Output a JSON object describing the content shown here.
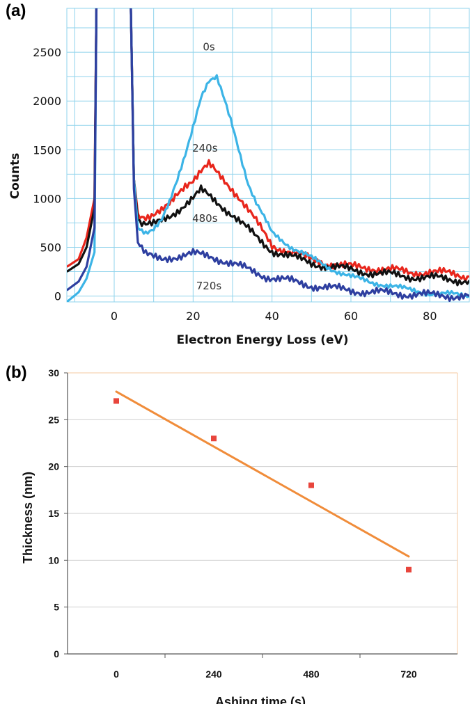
{
  "panels": {
    "a": "(a)",
    "b": "(b)"
  },
  "chart_data": [
    {
      "type": "line",
      "title": "",
      "xlabel": "Electron Energy Loss (eV)",
      "ylabel": "Counts",
      "xlim": [
        -12,
        90
      ],
      "ylim": [
        -60,
        2950
      ],
      "xticks": [
        0,
        20,
        40,
        60,
        80
      ],
      "yticks": [
        0,
        500,
        1000,
        1500,
        2000,
        2500
      ],
      "grid": true,
      "series": [
        {
          "name": "0s",
          "color": "#3cb4e6",
          "x": [
            -12,
            -9,
            -7,
            -5,
            -4.5,
            -3.5,
            4.2,
            5,
            6,
            8,
            10,
            12,
            14,
            16,
            18,
            20,
            22,
            24,
            26,
            28,
            30,
            32,
            34,
            36,
            38,
            40,
            45,
            50,
            55,
            60,
            65,
            70,
            75,
            80,
            85,
            90
          ],
          "y": [
            -60,
            40,
            180,
            450,
            3000,
            3000,
            3000,
            1200,
            700,
            660,
            700,
            780,
            950,
            1180,
            1450,
            1750,
            2050,
            2200,
            2230,
            2000,
            1750,
            1450,
            1150,
            950,
            800,
            650,
            500,
            390,
            280,
            200,
            140,
            110,
            60,
            30,
            20,
            0
          ]
        },
        {
          "name": "240s",
          "color": "#e8261c",
          "x": [
            -12,
            -9,
            -7,
            -5,
            -4.5,
            -3.5,
            4.2,
            5,
            6,
            8,
            10,
            12,
            14,
            16,
            18,
            20,
            22,
            24,
            26,
            28,
            30,
            32,
            34,
            36,
            38,
            40,
            45,
            50,
            55,
            60,
            65,
            70,
            75,
            80,
            85,
            90
          ],
          "y": [
            300,
            380,
            600,
            1000,
            3000,
            3000,
            3000,
            1200,
            850,
            820,
            830,
            860,
            930,
            1050,
            1150,
            1200,
            1280,
            1340,
            1260,
            1180,
            1100,
            1000,
            880,
            760,
            640,
            520,
            450,
            370,
            330,
            300,
            290,
            270,
            240,
            250,
            230,
            200
          ]
        },
        {
          "name": "480s",
          "color": "#111111",
          "x": [
            -12,
            -9,
            -7,
            -5,
            -4.5,
            -3.5,
            4.2,
            5,
            6,
            8,
            10,
            12,
            14,
            16,
            18,
            20,
            22,
            24,
            26,
            28,
            30,
            32,
            34,
            36,
            38,
            40,
            45,
            50,
            55,
            60,
            65,
            70,
            75,
            80,
            85,
            90
          ],
          "y": [
            250,
            330,
            500,
            900,
            3000,
            3000,
            3000,
            1200,
            780,
            740,
            730,
            760,
            810,
            880,
            950,
            1010,
            1080,
            1020,
            960,
            900,
            840,
            760,
            680,
            600,
            530,
            470,
            400,
            340,
            300,
            270,
            240,
            220,
            200,
            190,
            170,
            160
          ]
        },
        {
          "name": "720s",
          "color": "#2e3fa0",
          "x": [
            -12,
            -9,
            -7,
            -5,
            -4.5,
            -3.5,
            4.2,
            5,
            6,
            8,
            10,
            12,
            14,
            16,
            18,
            20,
            22,
            24,
            26,
            28,
            30,
            32,
            34,
            36,
            38,
            40,
            45,
            50,
            55,
            60,
            65,
            70,
            75,
            80,
            85,
            90
          ],
          "y": [
            60,
            150,
            300,
            700,
            3000,
            3000,
            3000,
            1100,
            550,
            420,
            390,
            380,
            400,
            410,
            420,
            430,
            420,
            410,
            390,
            360,
            330,
            300,
            270,
            240,
            210,
            190,
            150,
            110,
            80,
            60,
            40,
            30,
            20,
            10,
            5,
            0
          ]
        }
      ]
    },
    {
      "type": "scatter",
      "title": "",
      "xlabel": "Ashing time (s)",
      "ylabel": "Thickness (nm)",
      "categories": [
        "0",
        "240",
        "480",
        "720"
      ],
      "ylim": [
        0,
        30
      ],
      "yticks": [
        0,
        5,
        10,
        15,
        20,
        25,
        30
      ],
      "grid": true,
      "marker_color": "#e8453c",
      "trend_color": "#f08c3a",
      "points": [
        {
          "x": 0,
          "y": 27
        },
        {
          "x": 240,
          "y": 23
        },
        {
          "x": 480,
          "y": 18
        },
        {
          "x": 720,
          "y": 9
        }
      ],
      "trendline": {
        "x": [
          0,
          720
        ],
        "y": [
          28.0,
          10.4
        ]
      }
    }
  ]
}
